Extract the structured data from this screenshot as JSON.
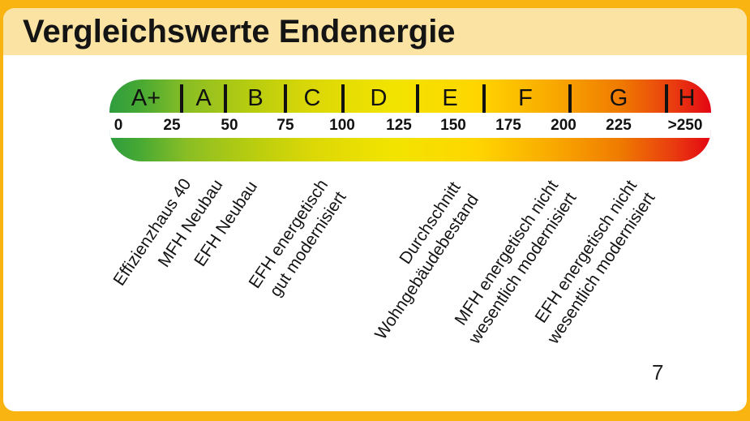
{
  "slide": {
    "title": "Vergleichswerte Endenergie",
    "page_number": "7"
  },
  "colors": {
    "frame_orange": "#f9b412",
    "title_band_cream": "#fbe3a4",
    "card_white": "#ffffff",
    "text_black": "#141414",
    "tick_black": "#111111",
    "scale_gradient_stops": [
      "#2e9c3e",
      "#47a934",
      "#8bbe24",
      "#b5cc10",
      "#dcd806",
      "#f2e400",
      "#ffd600",
      "#f9a800",
      "#ef7a00",
      "#e93a10",
      "#e30613"
    ]
  },
  "chart_data": {
    "type": "heatmap",
    "title": "Vergleichswerte Endenergie",
    "description": "Horizontal energy-efficiency color scale from green (A+) to red (H) with endenergy axis values and building-type annotations",
    "axis_ticks": [
      "0",
      "25",
      "50",
      "75",
      "100",
      "125",
      "150",
      "175",
      "200",
      "225",
      ">250"
    ],
    "axis_range": [
      0,
      250
    ],
    "classes": [
      {
        "label": "A+",
        "upper_bound": 30
      },
      {
        "label": "A",
        "upper_bound": 50
      },
      {
        "label": "B",
        "upper_bound": 75
      },
      {
        "label": "C",
        "upper_bound": 100
      },
      {
        "label": "D",
        "upper_bound": 130
      },
      {
        "label": "E",
        "upper_bound": 160
      },
      {
        "label": "F",
        "upper_bound": 200
      },
      {
        "label": "G",
        "upper_bound": 250
      },
      {
        "label": "H",
        "upper_bound": ">250"
      }
    ],
    "annotations": [
      {
        "lines": [
          "Effizienzhaus 40"
        ],
        "approx_value": 26
      },
      {
        "lines": [
          "MFH Neubau"
        ],
        "approx_value": 40
      },
      {
        "lines": [
          "EFH Neubau"
        ],
        "approx_value": 55
      },
      {
        "lines": [
          "EFH energetisch",
          "gut modernisiert"
        ],
        "approx_value": 87
      },
      {
        "lines": [
          "Durchschnitt",
          "Wohngebäudebestand"
        ],
        "approx_value": 147
      },
      {
        "lines": [
          "MFH energetisch nicht",
          "wesentlich modernisiert"
        ],
        "approx_value": 191
      },
      {
        "lines": [
          "EFH energetisch nicht",
          "wesentlich modernisiert"
        ],
        "approx_value": 226
      }
    ]
  }
}
